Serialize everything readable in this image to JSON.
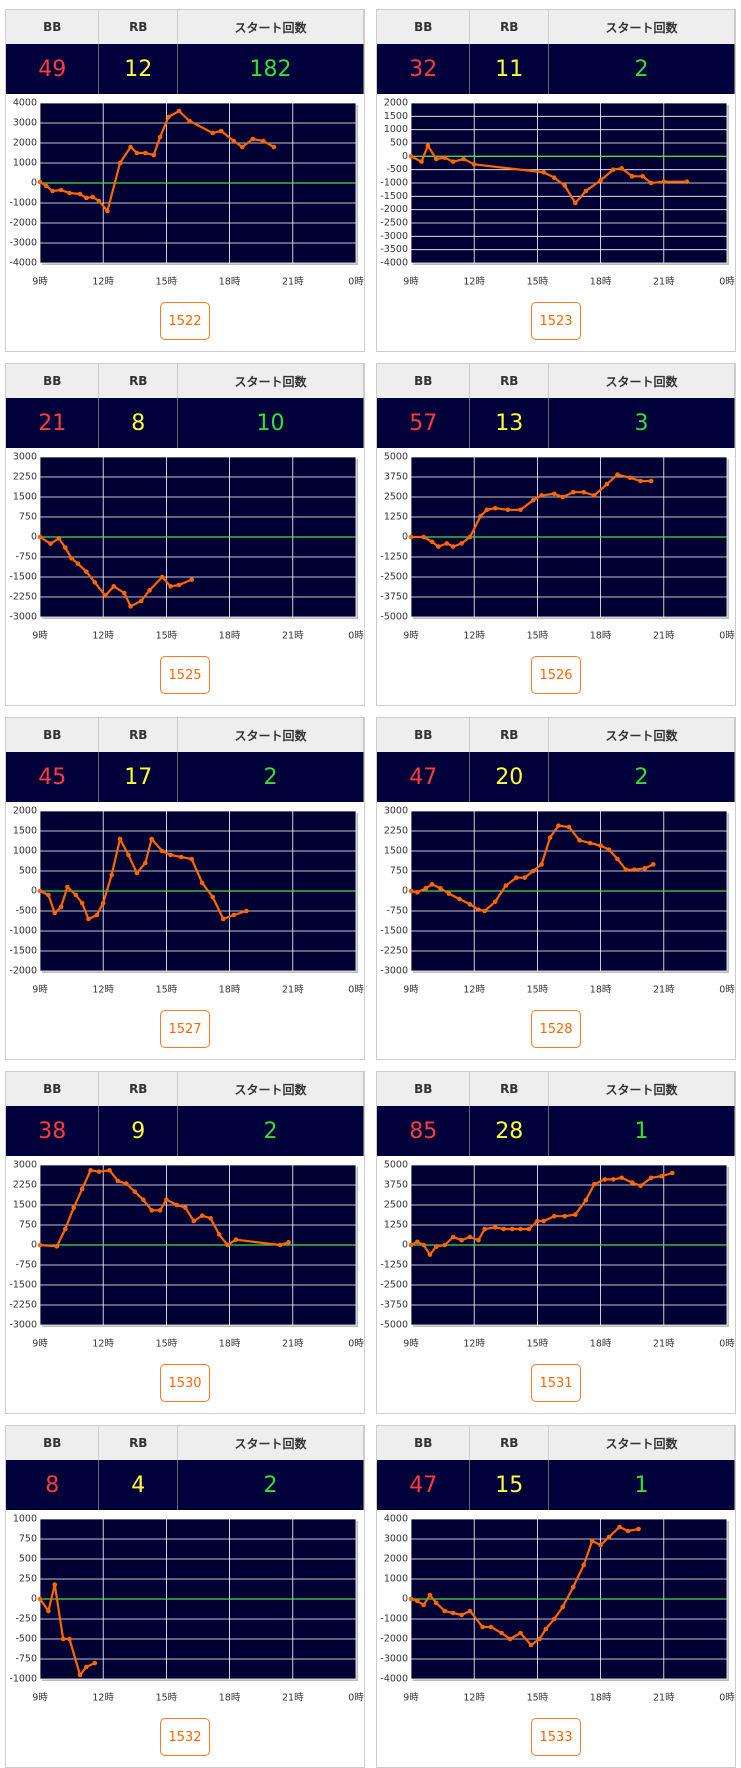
{
  "panels": [
    {
      "labels": [
        "BB",
        "RB",
        "スタート回数"
      ],
      "bb": 49,
      "rb": 12,
      "start": 182,
      "button": "1522",
      "chart": {
        "type": "line",
        "color": "#ff6600",
        "grid": true,
        "xlim": [
          9,
          24
        ],
        "ylim": [
          -4000,
          4000
        ],
        "xticks": [
          {
            "value": 9,
            "label": "9時"
          },
          {
            "value": 12,
            "label": "12時"
          },
          {
            "value": 15,
            "label": "15時"
          },
          {
            "value": 18,
            "label": "18時"
          },
          {
            "value": 21,
            "label": "21時"
          },
          {
            "value": 24,
            "label": "0時"
          }
        ],
        "yticks": [
          -4000,
          -3000,
          -2000,
          -1000,
          0,
          1000,
          2000,
          3000,
          4000
        ],
        "x": [
          9,
          9.3,
          9.6,
          10,
          10.4,
          10.9,
          11.2,
          11.5,
          11.8,
          12.2,
          12.8,
          13.3,
          13.6,
          14,
          14.4,
          14.7,
          15.1,
          15.6,
          16.1,
          17.2,
          17.6,
          18.2,
          18.6,
          19.1,
          19.6,
          20.1
        ],
        "values": [
          50,
          -150,
          -400,
          -350,
          -500,
          -550,
          -750,
          -700,
          -900,
          -1400,
          1000,
          1800,
          1500,
          1500,
          1400,
          2300,
          3300,
          3600,
          3100,
          2500,
          2600,
          2100,
          1800,
          2200,
          2100,
          1800
        ]
      }
    },
    {
      "labels": [
        "BB",
        "RB",
        "スタート回数"
      ],
      "bb": 32,
      "rb": 11,
      "start": 2,
      "button": "1523",
      "chart": {
        "type": "line",
        "color": "#ff6600",
        "grid": true,
        "xlim": [
          9,
          24
        ],
        "ylim": [
          -4000,
          2000
        ],
        "xticks": [
          {
            "value": 9,
            "label": "9時"
          },
          {
            "value": 12,
            "label": "12時"
          },
          {
            "value": 15,
            "label": "15時"
          },
          {
            "value": 18,
            "label": "18時"
          },
          {
            "value": 21,
            "label": "21時"
          },
          {
            "value": 24,
            "label": "0時"
          }
        ],
        "yticks": [
          -4000,
          -3500,
          -3000,
          -2500,
          -2000,
          -1500,
          -1000,
          -500,
          0,
          500,
          1000,
          1500,
          2000
        ],
        "x": [
          9,
          9.5,
          9.8,
          10.2,
          10.6,
          11,
          11.5,
          12,
          15.3,
          15.8,
          16.3,
          16.8,
          17.3,
          18,
          18.6,
          19,
          19.5,
          20,
          20.4,
          21,
          22.1
        ],
        "values": [
          0,
          -200,
          400,
          -100,
          -50,
          -200,
          -100,
          -300,
          -600,
          -800,
          -1100,
          -1750,
          -1300,
          -900,
          -500,
          -450,
          -750,
          -750,
          -1000,
          -950,
          -950
        ]
      }
    },
    {
      "labels": [
        "BB",
        "RB",
        "スタート回数"
      ],
      "bb": 21,
      "rb": 8,
      "start": 10,
      "button": "1525",
      "chart": {
        "type": "line",
        "color": "#ff6600",
        "grid": true,
        "xlim": [
          9,
          24
        ],
        "ylim": [
          -3000,
          3000
        ],
        "xticks": [
          {
            "value": 9,
            "label": "9時"
          },
          {
            "value": 12,
            "label": "12時"
          },
          {
            "value": 15,
            "label": "15時"
          },
          {
            "value": 18,
            "label": "18時"
          },
          {
            "value": 21,
            "label": "21時"
          },
          {
            "value": 24,
            "label": "0時"
          }
        ],
        "yticks": [
          -3000,
          -2250,
          -1500,
          -750,
          0,
          750,
          1500,
          2250,
          3000
        ],
        "x": [
          9,
          9.5,
          9.9,
          10.2,
          10.5,
          10.8,
          11.2,
          11.6,
          12.1,
          12.5,
          13,
          13.3,
          13.8,
          14.2,
          14.8,
          15.2,
          15.6,
          16.2
        ],
        "values": [
          0,
          -250,
          -50,
          -400,
          -800,
          -1000,
          -1300,
          -1700,
          -2200,
          -1850,
          -2100,
          -2600,
          -2400,
          -2000,
          -1500,
          -1850,
          -1800,
          -1600
        ]
      }
    },
    {
      "labels": [
        "BB",
        "RB",
        "スタート回数"
      ],
      "bb": 57,
      "rb": 13,
      "start": 3,
      "button": "1526",
      "chart": {
        "type": "line",
        "color": "#ff6600",
        "grid": true,
        "xlim": [
          9,
          24
        ],
        "ylim": [
          -5000,
          5000
        ],
        "xticks": [
          {
            "value": 9,
            "label": "9時"
          },
          {
            "value": 12,
            "label": "12時"
          },
          {
            "value": 15,
            "label": "15時"
          },
          {
            "value": 18,
            "label": "18時"
          },
          {
            "value": 21,
            "label": "21時"
          },
          {
            "value": 24,
            "label": "0時"
          }
        ],
        "yticks": [
          -5000,
          -3750,
          -2500,
          -1250,
          0,
          1250,
          2500,
          3750,
          5000
        ],
        "x": [
          9,
          9.6,
          10,
          10.3,
          10.7,
          11,
          11.4,
          11.8,
          12.3,
          12.6,
          13,
          13.6,
          14.2,
          14.8,
          15.2,
          15.8,
          16.2,
          16.7,
          17.2,
          17.7,
          18.3,
          18.8,
          19.4,
          19.9,
          20.4
        ],
        "values": [
          0,
          0,
          -300,
          -600,
          -400,
          -600,
          -400,
          0,
          1300,
          1700,
          1800,
          1700,
          1700,
          2300,
          2600,
          2700,
          2500,
          2800,
          2800,
          2600,
          3300,
          3900,
          3700,
          3500,
          3500
        ]
      }
    },
    {
      "labels": [
        "BB",
        "RB",
        "スタート回数"
      ],
      "bb": 45,
      "rb": 17,
      "start": 2,
      "button": "1527",
      "chart": {
        "type": "line",
        "color": "#ff6600",
        "grid": true,
        "xlim": [
          9,
          24
        ],
        "ylim": [
          -2000,
          2000
        ],
        "xticks": [
          {
            "value": 9,
            "label": "9時"
          },
          {
            "value": 12,
            "label": "12時"
          },
          {
            "value": 15,
            "label": "15時"
          },
          {
            "value": 18,
            "label": "18時"
          },
          {
            "value": 21,
            "label": "21時"
          },
          {
            "value": 24,
            "label": "0時"
          }
        ],
        "yticks": [
          -2000,
          -1500,
          -1000,
          -500,
          0,
          500,
          1000,
          1500,
          2000
        ],
        "x": [
          9,
          9.4,
          9.7,
          10,
          10.3,
          10.7,
          11,
          11.3,
          11.7,
          12,
          12.4,
          12.8,
          13.2,
          13.6,
          14,
          14.3,
          14.8,
          15.2,
          15.7,
          16.2,
          16.7,
          17.2,
          17.7,
          18.2,
          18.8
        ],
        "values": [
          0,
          -100,
          -550,
          -400,
          100,
          -100,
          -300,
          -700,
          -600,
          -300,
          400,
          1300,
          900,
          450,
          700,
          1300,
          1000,
          900,
          850,
          800,
          200,
          -150,
          -700,
          -600,
          -500
        ]
      }
    },
    {
      "labels": [
        "BB",
        "RB",
        "スタート回数"
      ],
      "bb": 47,
      "rb": 20,
      "start": 2,
      "button": "1528",
      "chart": {
        "type": "line",
        "color": "#ff6600",
        "grid": true,
        "xlim": [
          9,
          24
        ],
        "ylim": [
          -3000,
          3000
        ],
        "xticks": [
          {
            "value": 9,
            "label": "9時"
          },
          {
            "value": 12,
            "label": "12時"
          },
          {
            "value": 15,
            "label": "15時"
          },
          {
            "value": 18,
            "label": "18時"
          },
          {
            "value": 21,
            "label": "21時"
          },
          {
            "value": 24,
            "label": "0時"
          }
        ],
        "yticks": [
          -3000,
          -2250,
          -1500,
          -750,
          0,
          750,
          1500,
          2250,
          3000
        ],
        "x": [
          9,
          9.3,
          9.7,
          10,
          10.4,
          10.8,
          11.3,
          11.8,
          12.2,
          12.5,
          13,
          13.5,
          14,
          14.4,
          14.8,
          15.2,
          15.6,
          16,
          16.5,
          17,
          17.5,
          18,
          18.4,
          18.8,
          19.2,
          19.6,
          20.1,
          20.5
        ],
        "values": [
          0,
          -50,
          100,
          250,
          100,
          -100,
          -300,
          -500,
          -700,
          -750,
          -400,
          200,
          500,
          500,
          750,
          1000,
          2000,
          2450,
          2400,
          1900,
          1800,
          1700,
          1550,
          1200,
          800,
          800,
          850,
          1000
        ]
      }
    },
    {
      "labels": [
        "BB",
        "RB",
        "スタート回数"
      ],
      "bb": 38,
      "rb": 9,
      "start": 2,
      "button": "1530",
      "chart": {
        "type": "line",
        "color": "#ff6600",
        "grid": true,
        "xlim": [
          9,
          24
        ],
        "ylim": [
          -3000,
          3000
        ],
        "xticks": [
          {
            "value": 9,
            "label": "9時"
          },
          {
            "value": 12,
            "label": "12時"
          },
          {
            "value": 15,
            "label": "15時"
          },
          {
            "value": 18,
            "label": "18時"
          },
          {
            "value": 21,
            "label": "21時"
          },
          {
            "value": 24,
            "label": "0時"
          }
        ],
        "yticks": [
          -3000,
          -2250,
          -1500,
          -750,
          0,
          750,
          1500,
          2250,
          3000
        ],
        "x": [
          9,
          9.8,
          10.2,
          10.6,
          11,
          11.4,
          11.8,
          12.3,
          12.7,
          13.1,
          13.5,
          13.9,
          14.3,
          14.7,
          15,
          15.5,
          15.9,
          16.3,
          16.7,
          17.1,
          17.5,
          17.9,
          18.3,
          20.4,
          20.8
        ],
        "values": [
          0,
          -50,
          600,
          1400,
          2100,
          2800,
          2750,
          2800,
          2400,
          2300,
          2000,
          1700,
          1300,
          1300,
          1700,
          1500,
          1400,
          900,
          1100,
          1000,
          400,
          0,
          200,
          0,
          100
        ]
      }
    },
    {
      "labels": [
        "BB",
        "RB",
        "スタート回数"
      ],
      "bb": 85,
      "rb": 28,
      "start": 1,
      "button": "1531",
      "chart": {
        "type": "line",
        "color": "#ff6600",
        "grid": true,
        "xlim": [
          9,
          24
        ],
        "ylim": [
          -5000,
          5000
        ],
        "xticks": [
          {
            "value": 9,
            "label": "9時"
          },
          {
            "value": 12,
            "label": "12時"
          },
          {
            "value": 15,
            "label": "15時"
          },
          {
            "value": 18,
            "label": "18時"
          },
          {
            "value": 21,
            "label": "21時"
          },
          {
            "value": 24,
            "label": "0時"
          }
        ],
        "yticks": [
          -5000,
          -3750,
          -2500,
          -1250,
          0,
          1250,
          2500,
          3750,
          5000
        ],
        "x": [
          9,
          9.3,
          9.6,
          9.9,
          10.2,
          10.6,
          11,
          11.4,
          11.8,
          12.2,
          12.5,
          13,
          13.4,
          13.8,
          14.2,
          14.6,
          15,
          15.3,
          15.8,
          16.3,
          16.8,
          17.3,
          17.7,
          18.2,
          18.6,
          19,
          19.5,
          19.9,
          20.4,
          20.9,
          21.4
        ],
        "values": [
          0,
          200,
          0,
          -600,
          -100,
          0,
          500,
          300,
          500,
          300,
          1000,
          1100,
          1000,
          1000,
          1000,
          1000,
          1500,
          1500,
          1800,
          1800,
          1900,
          2800,
          3800,
          4100,
          4100,
          4200,
          3900,
          3700,
          4200,
          4300,
          4500
        ]
      }
    },
    {
      "labels": [
        "BB",
        "RB",
        "スタート回数"
      ],
      "bb": 8,
      "rb": 4,
      "start": 2,
      "button": "1532",
      "chart": {
        "type": "line",
        "color": "#ff6600",
        "grid": true,
        "xlim": [
          9,
          24
        ],
        "ylim": [
          -1000,
          1000
        ],
        "xticks": [
          {
            "value": 9,
            "label": "9時"
          },
          {
            "value": 12,
            "label": "12時"
          },
          {
            "value": 15,
            "label": "15時"
          },
          {
            "value": 18,
            "label": "18時"
          },
          {
            "value": 21,
            "label": "21時"
          },
          {
            "value": 24,
            "label": "0時"
          }
        ],
        "yticks": [
          -1000,
          -750,
          -500,
          -250,
          0,
          250,
          500,
          750,
          1000
        ],
        "x": [
          9,
          9.4,
          9.7,
          10.1,
          10.4,
          10.9,
          11.2,
          11.6
        ],
        "values": [
          0,
          -150,
          180,
          -500,
          -500,
          -950,
          -850,
          -800
        ]
      }
    },
    {
      "labels": [
        "BB",
        "RB",
        "スタート回数"
      ],
      "bb": 47,
      "rb": 15,
      "start": 1,
      "button": "1533",
      "chart": {
        "type": "line",
        "color": "#ff6600",
        "grid": true,
        "xlim": [
          9,
          24
        ],
        "ylim": [
          -4000,
          4000
        ],
        "xticks": [
          {
            "value": 9,
            "label": "9時"
          },
          {
            "value": 12,
            "label": "12時"
          },
          {
            "value": 15,
            "label": "15時"
          },
          {
            "value": 18,
            "label": "18時"
          },
          {
            "value": 21,
            "label": "21時"
          },
          {
            "value": 24,
            "label": "0時"
          }
        ],
        "yticks": [
          -4000,
          -3000,
          -2000,
          -1000,
          0,
          1000,
          2000,
          3000,
          4000
        ],
        "x": [
          9,
          9.3,
          9.6,
          9.9,
          10.2,
          10.6,
          11,
          11.4,
          11.8,
          12.4,
          12.8,
          13.3,
          13.7,
          14.2,
          14.7,
          15.1,
          15.4,
          15.8,
          16.2,
          16.7,
          17.2,
          17.6,
          18,
          18.4,
          18.9,
          19.3,
          19.8
        ],
        "values": [
          0,
          -100,
          -300,
          200,
          -200,
          -600,
          -700,
          -800,
          -600,
          -1400,
          -1400,
          -1700,
          -2000,
          -1700,
          -2300,
          -2000,
          -1500,
          -1000,
          -400,
          600,
          1700,
          2900,
          2700,
          3100,
          3600,
          3400,
          3500
        ]
      }
    }
  ]
}
